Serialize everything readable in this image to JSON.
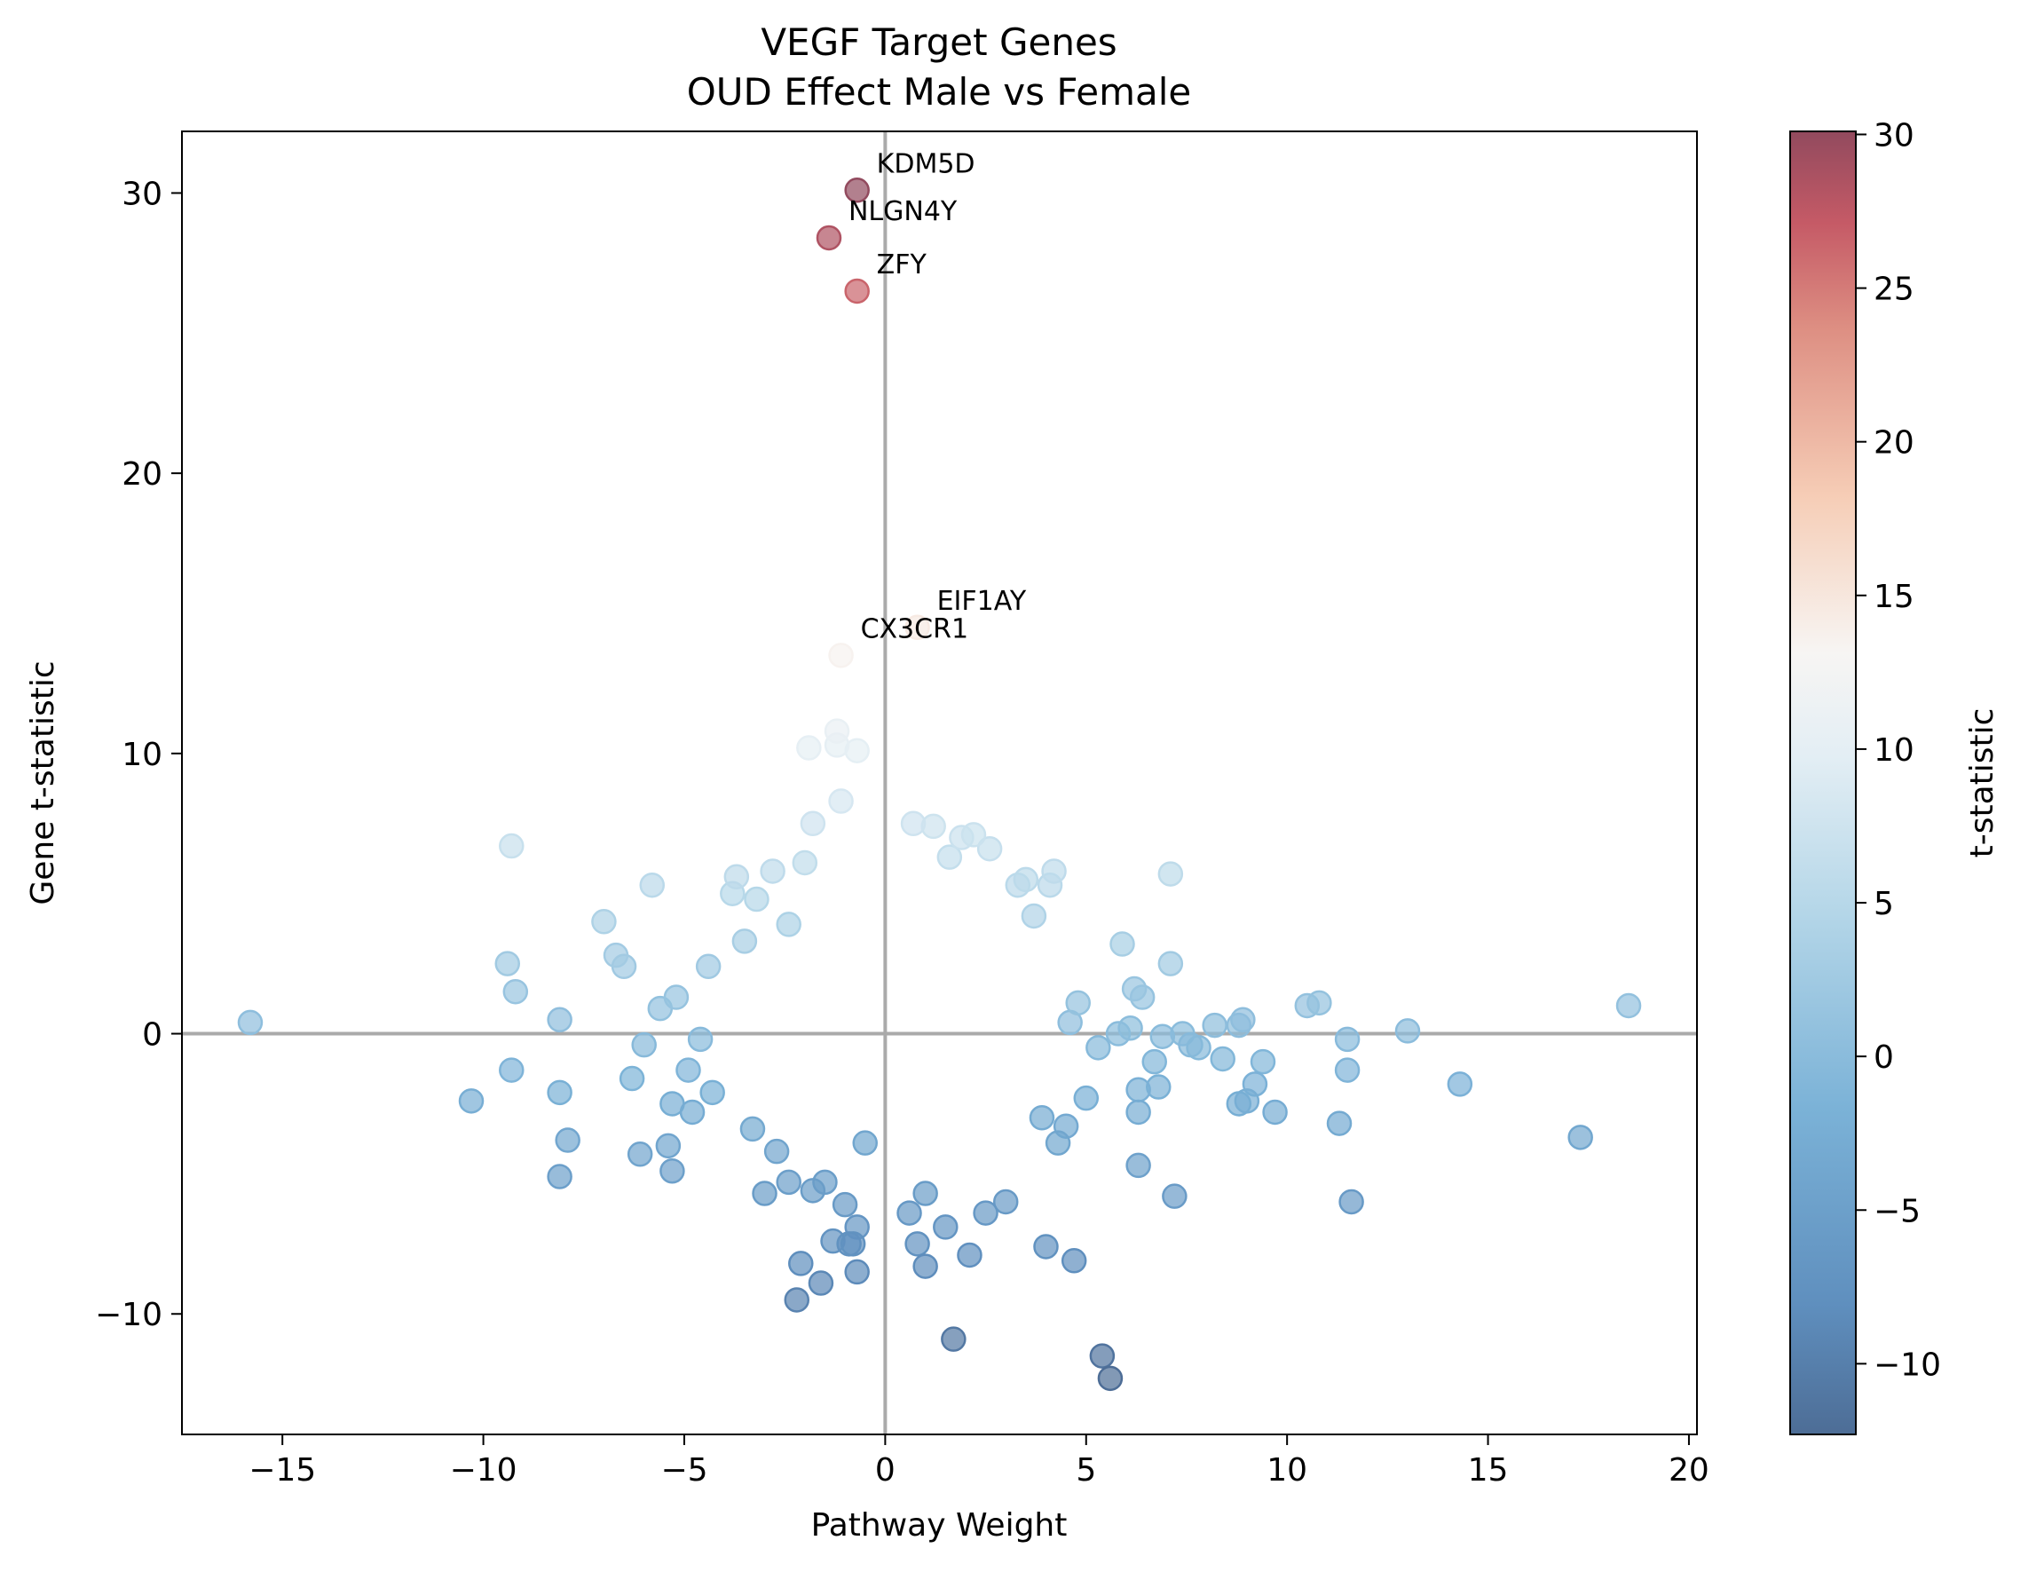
{
  "chart_data": {
    "type": "scatter",
    "title": "VEGF Target Genes",
    "subtitle": "OUD Effect Male vs Female",
    "xlabel": "Pathway Weight",
    "ylabel": "Gene t-statistic",
    "xlim": [
      -17.5,
      20.2
    ],
    "ylim": [
      -14.3,
      32.2
    ],
    "xticks": [
      -15,
      -10,
      -5,
      0,
      5,
      10,
      15,
      20
    ],
    "yticks": [
      -10,
      0,
      10,
      20,
      30
    ],
    "grid": false,
    "reference_lines": [
      {
        "axis": "x",
        "value": 0
      },
      {
        "axis": "y",
        "value": 0
      }
    ],
    "colorbar": {
      "label": "t-statistic",
      "colormap": "RdBu_r",
      "range": [
        -12.3,
        30.1
      ],
      "ticks": [
        -10,
        -5,
        0,
        5,
        10,
        15,
        20,
        25,
        30
      ]
    },
    "labeled_points": [
      {
        "label": "KDM5D",
        "x": -0.7,
        "y": 30.1
      },
      {
        "label": "NLGN4Y",
        "x": -1.4,
        "y": 28.4
      },
      {
        "label": "ZFY",
        "x": -0.7,
        "y": 26.5
      },
      {
        "label": "EIF1AY",
        "x": 0.8,
        "y": 14.5
      },
      {
        "label": "CX3CR1",
        "x": -1.1,
        "y": 13.5
      }
    ],
    "points": [
      {
        "x": -15.8,
        "y": 0.4
      },
      {
        "x": -10.3,
        "y": -2.4
      },
      {
        "x": -9.4,
        "y": 2.5
      },
      {
        "x": -9.2,
        "y": 1.5
      },
      {
        "x": -9.3,
        "y": 6.7
      },
      {
        "x": -9.3,
        "y": -1.3
      },
      {
        "x": -8.1,
        "y": 0.5
      },
      {
        "x": -8.1,
        "y": -2.1
      },
      {
        "x": -8.1,
        "y": -5.1
      },
      {
        "x": -7.9,
        "y": -3.8
      },
      {
        "x": -7.0,
        "y": 4.0
      },
      {
        "x": -6.7,
        "y": 2.8
      },
      {
        "x": -6.5,
        "y": 2.4
      },
      {
        "x": -6.3,
        "y": -1.6
      },
      {
        "x": -6.1,
        "y": -4.3
      },
      {
        "x": -6.0,
        "y": -0.4
      },
      {
        "x": -5.8,
        "y": 5.3
      },
      {
        "x": -5.6,
        "y": 0.9
      },
      {
        "x": -5.4,
        "y": -4.0
      },
      {
        "x": -5.3,
        "y": -4.9
      },
      {
        "x": -5.3,
        "y": -2.5
      },
      {
        "x": -5.2,
        "y": 1.3
      },
      {
        "x": -4.9,
        "y": -1.3
      },
      {
        "x": -4.8,
        "y": -2.8
      },
      {
        "x": -4.6,
        "y": -0.2
      },
      {
        "x": -4.4,
        "y": 2.4
      },
      {
        "x": -4.3,
        "y": -2.1
      },
      {
        "x": -3.8,
        "y": 5.0
      },
      {
        "x": -3.7,
        "y": 5.6
      },
      {
        "x": -3.5,
        "y": 3.3
      },
      {
        "x": -3.3,
        "y": -3.4
      },
      {
        "x": -3.2,
        "y": 4.8
      },
      {
        "x": -3.0,
        "y": -5.7
      },
      {
        "x": -2.8,
        "y": 5.8
      },
      {
        "x": -2.7,
        "y": -4.2
      },
      {
        "x": -2.4,
        "y": -5.3
      },
      {
        "x": -2.4,
        "y": 3.9
      },
      {
        "x": -2.2,
        "y": -9.5
      },
      {
        "x": -2.1,
        "y": -8.2
      },
      {
        "x": -2.0,
        "y": 6.1
      },
      {
        "x": -1.8,
        "y": 7.5
      },
      {
        "x": -1.8,
        "y": -5.6
      },
      {
        "x": -1.6,
        "y": -8.9
      },
      {
        "x": -1.5,
        "y": -5.3
      },
      {
        "x": -1.3,
        "y": -7.4
      },
      {
        "x": -1.2,
        "y": 10.8
      },
      {
        "x": -1.2,
        "y": 10.3
      },
      {
        "x": -1.9,
        "y": 10.2
      },
      {
        "x": -1.1,
        "y": 8.3
      },
      {
        "x": -1.0,
        "y": -6.1
      },
      {
        "x": -0.9,
        "y": -7.5
      },
      {
        "x": -0.8,
        "y": -7.5
      },
      {
        "x": -0.7,
        "y": -6.9
      },
      {
        "x": -0.7,
        "y": -8.5
      },
      {
        "x": -0.7,
        "y": 10.1
      },
      {
        "x": -0.5,
        "y": -3.9
      },
      {
        "x": 0.7,
        "y": 7.5
      },
      {
        "x": 0.6,
        "y": -6.4
      },
      {
        "x": 0.8,
        "y": -7.5
      },
      {
        "x": 1.0,
        "y": -5.7
      },
      {
        "x": 1.0,
        "y": -8.3
      },
      {
        "x": 1.2,
        "y": 7.4
      },
      {
        "x": 1.5,
        "y": -6.9
      },
      {
        "x": 1.6,
        "y": 6.3
      },
      {
        "x": 1.7,
        "y": -10.9
      },
      {
        "x": 1.9,
        "y": 7.0
      },
      {
        "x": 2.1,
        "y": -7.9
      },
      {
        "x": 2.2,
        "y": 7.1
      },
      {
        "x": 2.6,
        "y": 6.6
      },
      {
        "x": 2.5,
        "y": -6.4
      },
      {
        "x": 3.0,
        "y": -6.0
      },
      {
        "x": 3.3,
        "y": 5.3
      },
      {
        "x": 3.5,
        "y": 5.5
      },
      {
        "x": 3.7,
        "y": 4.2
      },
      {
        "x": 3.9,
        "y": -3.0
      },
      {
        "x": 4.0,
        "y": -7.6
      },
      {
        "x": 4.1,
        "y": 5.3
      },
      {
        "x": 4.2,
        "y": 5.8
      },
      {
        "x": 4.3,
        "y": -3.9
      },
      {
        "x": 4.5,
        "y": -3.3
      },
      {
        "x": 4.6,
        "y": 0.4
      },
      {
        "x": 4.7,
        "y": -8.1
      },
      {
        "x": 4.8,
        "y": 1.1
      },
      {
        "x": 5.0,
        "y": -2.3
      },
      {
        "x": 5.3,
        "y": -0.5
      },
      {
        "x": 5.4,
        "y": -11.5
      },
      {
        "x": 5.6,
        "y": -12.3
      },
      {
        "x": 5.8,
        "y": 0.0
      },
      {
        "x": 5.9,
        "y": 3.2
      },
      {
        "x": 6.1,
        "y": 0.2
      },
      {
        "x": 6.2,
        "y": 1.6
      },
      {
        "x": 6.3,
        "y": -2.0
      },
      {
        "x": 6.3,
        "y": -2.8
      },
      {
        "x": 6.3,
        "y": -4.7
      },
      {
        "x": 6.4,
        "y": 1.3
      },
      {
        "x": 6.7,
        "y": -1.0
      },
      {
        "x": 6.8,
        "y": -1.9
      },
      {
        "x": 6.9,
        "y": -0.1
      },
      {
        "x": 7.1,
        "y": 5.7
      },
      {
        "x": 7.1,
        "y": 2.5
      },
      {
        "x": 7.2,
        "y": -5.8
      },
      {
        "x": 7.4,
        "y": 0.0
      },
      {
        "x": 7.6,
        "y": -0.4
      },
      {
        "x": 7.8,
        "y": -0.5
      },
      {
        "x": 8.2,
        "y": 0.3
      },
      {
        "x": 8.4,
        "y": -0.9
      },
      {
        "x": 8.8,
        "y": 0.3
      },
      {
        "x": 8.9,
        "y": 0.5
      },
      {
        "x": 8.8,
        "y": -2.5
      },
      {
        "x": 9.0,
        "y": -2.4
      },
      {
        "x": 9.2,
        "y": -1.8
      },
      {
        "x": 9.4,
        "y": -1.0
      },
      {
        "x": 9.7,
        "y": -2.8
      },
      {
        "x": 10.5,
        "y": 1.0
      },
      {
        "x": 10.8,
        "y": 1.1
      },
      {
        "x": 11.3,
        "y": -3.2
      },
      {
        "x": 11.5,
        "y": -0.2
      },
      {
        "x": 11.5,
        "y": -1.3
      },
      {
        "x": 11.6,
        "y": -6.0
      },
      {
        "x": 13.0,
        "y": 0.1
      },
      {
        "x": 14.3,
        "y": -1.8
      },
      {
        "x": 17.3,
        "y": -3.7
      },
      {
        "x": 18.5,
        "y": 1.0
      }
    ],
    "cloud_note": ""
  }
}
